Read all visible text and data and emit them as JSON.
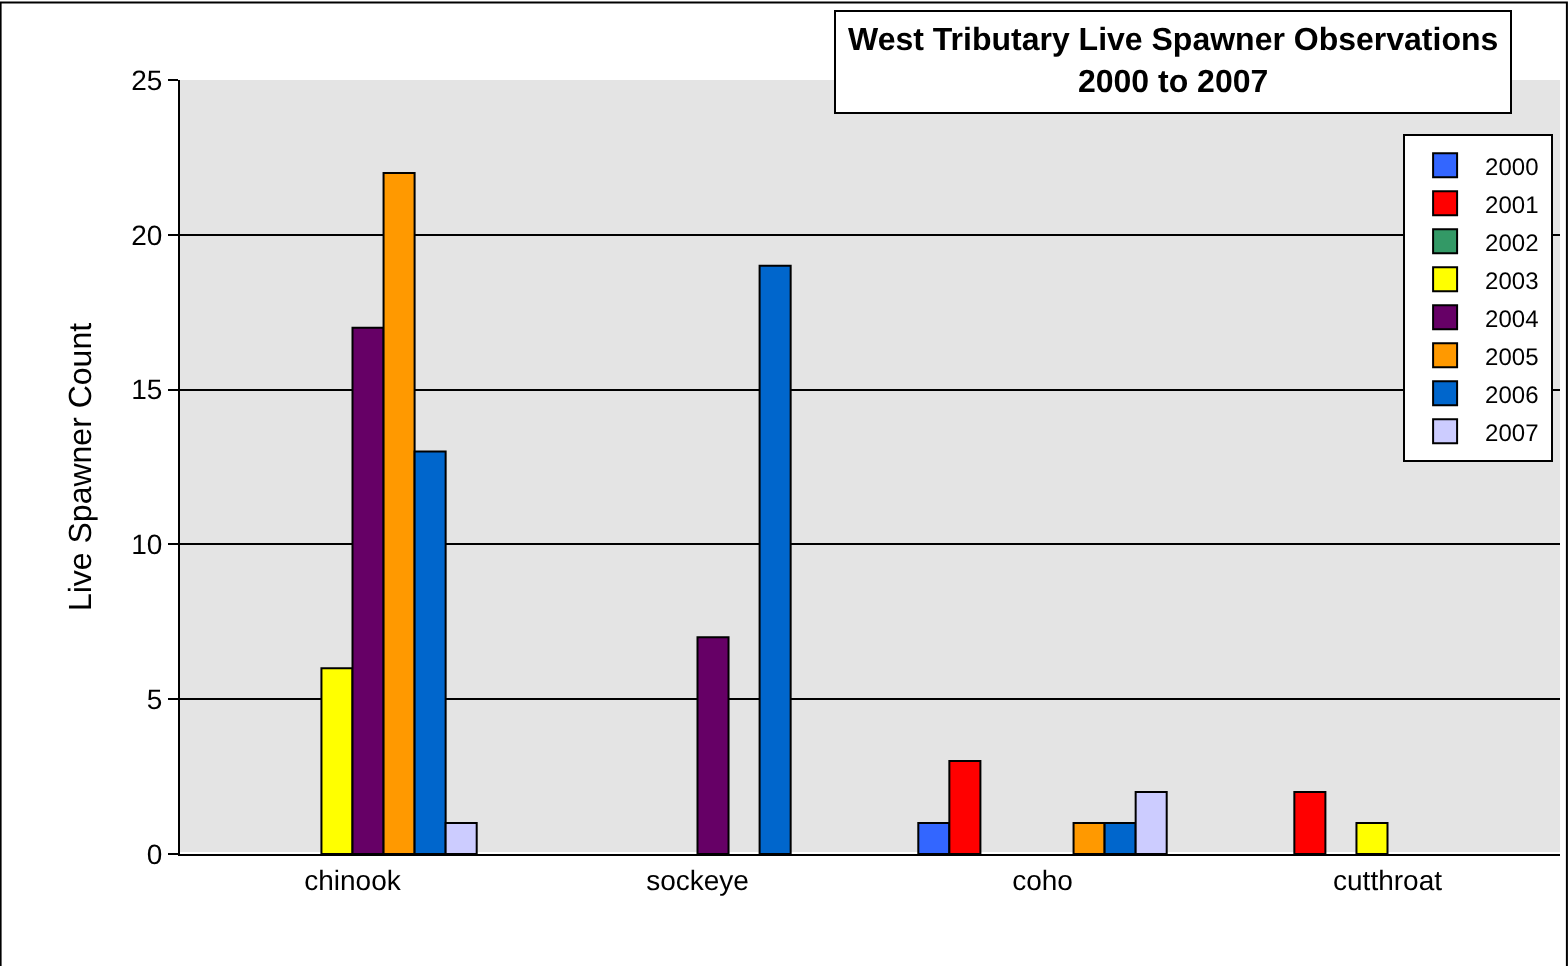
{
  "chart_data": {
    "type": "bar",
    "title": "West Tributary Live Spawner Observations\n2000 to 2007",
    "ylabel": "Live Spawner Count",
    "categories": [
      "chinook",
      "sockeye",
      "coho",
      "cutthroat"
    ],
    "series": [
      {
        "name": "2000",
        "color": "#3366ff",
        "values": [
          null,
          null,
          1,
          null
        ]
      },
      {
        "name": "2001",
        "color": "#ff0000",
        "values": [
          null,
          null,
          3,
          2
        ]
      },
      {
        "name": "2002",
        "color": "#339966",
        "values": [
          null,
          null,
          null,
          null
        ]
      },
      {
        "name": "2003",
        "color": "#ffff00",
        "values": [
          6,
          null,
          null,
          1
        ]
      },
      {
        "name": "2004",
        "color": "#660066",
        "values": [
          17,
          7,
          null,
          null
        ]
      },
      {
        "name": "2005",
        "color": "#ff9900",
        "values": [
          22,
          null,
          1,
          null
        ]
      },
      {
        "name": "2006",
        "color": "#0066cc",
        "values": [
          13,
          19,
          1,
          null
        ]
      },
      {
        "name": "2007",
        "color": "#ccccff",
        "values": [
          1,
          null,
          2,
          null
        ]
      }
    ],
    "ylim": [
      0,
      25
    ],
    "yticks": [
      0,
      5,
      10,
      15,
      20,
      25
    ],
    "grid": "y",
    "legend": "top right"
  }
}
